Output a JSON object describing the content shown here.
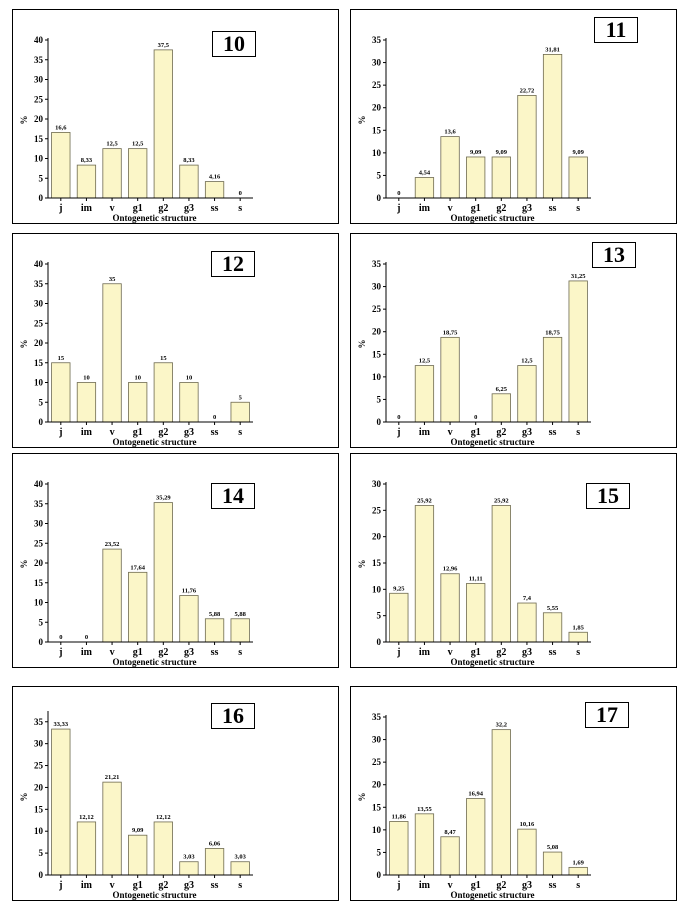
{
  "chart_data": [
    {
      "id": "10",
      "type": "bar",
      "categories": [
        "j",
        "im",
        "v",
        "g1",
        "g2",
        "g3",
        "ss",
        "s"
      ],
      "values": [
        16.6,
        8.33,
        12.5,
        12.5,
        37.5,
        8.33,
        4.16,
        0
      ],
      "value_labels": [
        "16,6",
        "8,33",
        "12,5",
        "12,5",
        "37,5",
        "8,33",
        "4,16",
        "0"
      ],
      "ylim": [
        0,
        40
      ],
      "yticks": [
        0,
        5,
        10,
        15,
        20,
        25,
        30,
        35,
        40
      ],
      "xlabel": "Ontogenetic structure",
      "ylabel": "%"
    },
    {
      "id": "11",
      "type": "bar",
      "categories": [
        "j",
        "im",
        "v",
        "g1",
        "g2",
        "g3",
        "ss",
        "s"
      ],
      "values": [
        0,
        4.54,
        13.6,
        9.09,
        9.09,
        22.72,
        31.81,
        9.09
      ],
      "value_labels": [
        "0",
        "4,54",
        "13,6",
        "9,09",
        "9,09",
        "22,72",
        "31,81",
        "9,09"
      ],
      "ylim": [
        0,
        35
      ],
      "yticks": [
        0,
        5,
        10,
        15,
        20,
        25,
        30,
        35
      ],
      "xlabel": "Ontogenetic structure",
      "ylabel": "%"
    },
    {
      "id": "12",
      "type": "bar",
      "categories": [
        "j",
        "im",
        "v",
        "g1",
        "g2",
        "g3",
        "ss",
        "s"
      ],
      "values": [
        15,
        10,
        35,
        10,
        15,
        10,
        0,
        5
      ],
      "value_labels": [
        "15",
        "10",
        "35",
        "10",
        "15",
        "10",
        "0",
        "5"
      ],
      "ylim": [
        0,
        40
      ],
      "yticks": [
        0,
        5,
        10,
        15,
        20,
        25,
        30,
        35,
        40
      ],
      "xlabel": "Ontogenetic structure",
      "ylabel": "%"
    },
    {
      "id": "13",
      "type": "bar",
      "categories": [
        "j",
        "im",
        "v",
        "g1",
        "g2",
        "g3",
        "ss",
        "s"
      ],
      "values": [
        0,
        12.5,
        18.75,
        0,
        6.25,
        12.5,
        18.75,
        31.25
      ],
      "value_labels": [
        "0",
        "12,5",
        "18,75",
        "0",
        "6,25",
        "12,5",
        "18,75",
        "31,25"
      ],
      "ylim": [
        0,
        35
      ],
      "yticks": [
        0,
        5,
        10,
        15,
        20,
        25,
        30,
        35
      ],
      "xlabel": "Ontogenetic structure",
      "ylabel": "%"
    },
    {
      "id": "14",
      "type": "bar",
      "categories": [
        "j",
        "im",
        "v",
        "g1",
        "g2",
        "g3",
        "ss",
        "s"
      ],
      "values": [
        0,
        0,
        23.52,
        17.64,
        35.29,
        11.76,
        5.88,
        5.88
      ],
      "value_labels": [
        "0",
        "0",
        "23,52",
        "17,64",
        "35,29",
        "11,76",
        "5,88",
        "5,88"
      ],
      "ylim": [
        0,
        40
      ],
      "yticks": [
        0,
        5,
        10,
        15,
        20,
        25,
        30,
        35,
        40
      ],
      "xlabel": "Ontogenetic structure",
      "ylabel": "%"
    },
    {
      "id": "15",
      "type": "bar",
      "categories": [
        "j",
        "im",
        "v",
        "g1",
        "g2",
        "g3",
        "ss",
        "s"
      ],
      "values": [
        9.25,
        25.92,
        12.96,
        11.11,
        25.92,
        7.4,
        5.55,
        1.85
      ],
      "value_labels": [
        "9,25",
        "25,92",
        "12,96",
        "11,11",
        "25,92",
        "7,4",
        "5,55",
        "1,85"
      ],
      "ylim": [
        0,
        30
      ],
      "yticks": [
        0,
        5,
        10,
        15,
        20,
        25,
        30
      ],
      "xlabel": "Ontogenetic structure",
      "ylabel": "%"
    },
    {
      "id": "16",
      "type": "bar",
      "categories": [
        "j",
        "im",
        "v",
        "g1",
        "g2",
        "g3",
        "ss",
        "s"
      ],
      "values": [
        33.33,
        12.12,
        21.21,
        9.09,
        12.12,
        3.03,
        6.06,
        3.03
      ],
      "value_labels": [
        "33,33",
        "12,12",
        "21,21",
        "9,09",
        "12,12",
        "3,03",
        "6,06",
        "3,03"
      ],
      "ylim": [
        0,
        37
      ],
      "yticks": [
        0,
        5,
        10,
        15,
        20,
        25,
        30,
        35
      ],
      "xlabel": "Ontogenetic structure",
      "ylabel": "%"
    },
    {
      "id": "17",
      "type": "bar",
      "categories": [
        "j",
        "im",
        "v",
        "g1",
        "g2",
        "g3",
        "ss",
        "s"
      ],
      "values": [
        11.86,
        13.55,
        8.47,
        16.94,
        32.2,
        10.16,
        5.08,
        1.69
      ],
      "value_labels": [
        "11,86",
        "13,55",
        "8,47",
        "16,94",
        "32,2",
        "10,16",
        "5,08",
        "1,69"
      ],
      "ylim": [
        0,
        35
      ],
      "yticks": [
        0,
        5,
        10,
        15,
        20,
        25,
        30,
        35
      ],
      "xlabel": "Ontogenetic structure",
      "ylabel": "%"
    }
  ],
  "colors": {
    "bar_fill": "#fbf6c8",
    "bar_stroke": "#6e6a50"
  }
}
